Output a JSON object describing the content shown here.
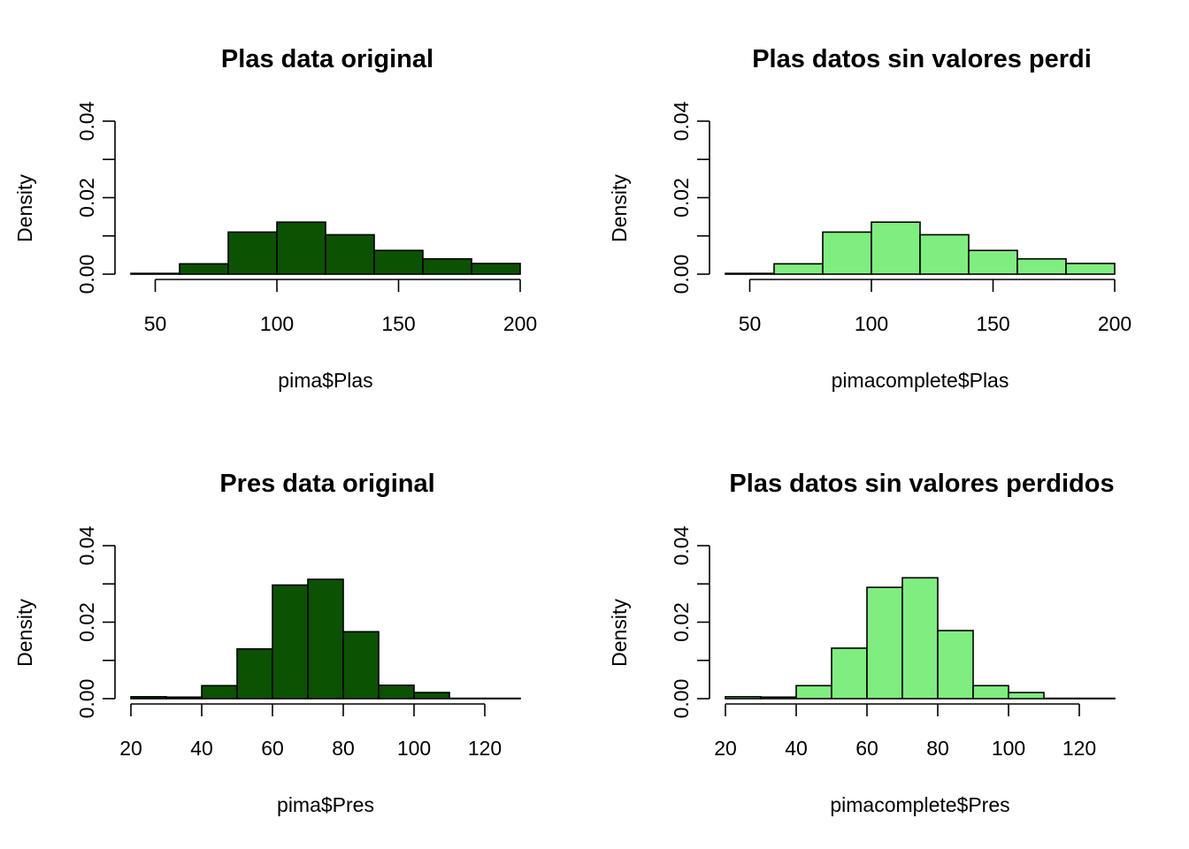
{
  "chart_data": [
    {
      "type": "histogram",
      "title": "Plas data original",
      "xlabel": "pima$Plas",
      "ylabel": "Density",
      "bin_edges": [
        40,
        60,
        80,
        100,
        120,
        140,
        160,
        180,
        200
      ],
      "values": [
        0.0002,
        0.0027,
        0.011,
        0.0136,
        0.0103,
        0.0062,
        0.004,
        0.0028
      ],
      "xlim": [
        40,
        200
      ],
      "ylim": [
        0,
        0.04
      ],
      "x_ticks": [
        "50",
        "100",
        "150",
        "200"
      ],
      "y_ticks": [
        "0.00",
        "0.02",
        "0.04"
      ],
      "bar_color": "#0b5202"
    },
    {
      "type": "histogram",
      "title": "Plas datos sin valores perdi",
      "xlabel": "pimacomplete$Plas",
      "ylabel": "Density",
      "bin_edges": [
        40,
        60,
        80,
        100,
        120,
        140,
        160,
        180,
        200
      ],
      "values": [
        0.0002,
        0.0027,
        0.011,
        0.0136,
        0.0103,
        0.0062,
        0.004,
        0.0028
      ],
      "xlim": [
        40,
        200
      ],
      "ylim": [
        0,
        0.04
      ],
      "x_ticks": [
        "50",
        "100",
        "150",
        "200"
      ],
      "y_ticks": [
        "0.00",
        "0.02",
        "0.04"
      ],
      "bar_color": "#80ed80"
    },
    {
      "type": "histogram",
      "title": "Pres data original",
      "xlabel": "pima$Pres",
      "ylabel": "Density",
      "bin_edges": [
        20,
        30,
        40,
        50,
        60,
        70,
        80,
        90,
        100,
        110,
        120,
        130
      ],
      "values": [
        0.0005,
        0.0004,
        0.0034,
        0.013,
        0.0297,
        0.0312,
        0.0175,
        0.0035,
        0.0016,
        0.0001,
        0.0001
      ],
      "xlim": [
        20,
        130
      ],
      "ylim": [
        0,
        0.04
      ],
      "x_ticks": [
        "20",
        "40",
        "60",
        "80",
        "100",
        "120"
      ],
      "y_ticks": [
        "0.00",
        "0.02",
        "0.04"
      ],
      "bar_color": "#0b5202"
    },
    {
      "type": "histogram",
      "title": "Plas datos sin valores perdidos",
      "xlabel": "pimacomplete$Pres",
      "ylabel": "Density",
      "bin_edges": [
        20,
        30,
        40,
        50,
        60,
        70,
        80,
        90,
        100,
        110,
        120,
        130
      ],
      "values": [
        0.0005,
        0.0004,
        0.0034,
        0.0132,
        0.0291,
        0.0316,
        0.0178,
        0.0034,
        0.0016,
        0.0001,
        0.0001
      ],
      "xlim": [
        20,
        130
      ],
      "ylim": [
        0,
        0.04
      ],
      "x_ticks": [
        "20",
        "40",
        "60",
        "80",
        "100",
        "120"
      ],
      "y_ticks": [
        "0.00",
        "0.02",
        "0.04"
      ],
      "bar_color": "#80ed80"
    }
  ]
}
